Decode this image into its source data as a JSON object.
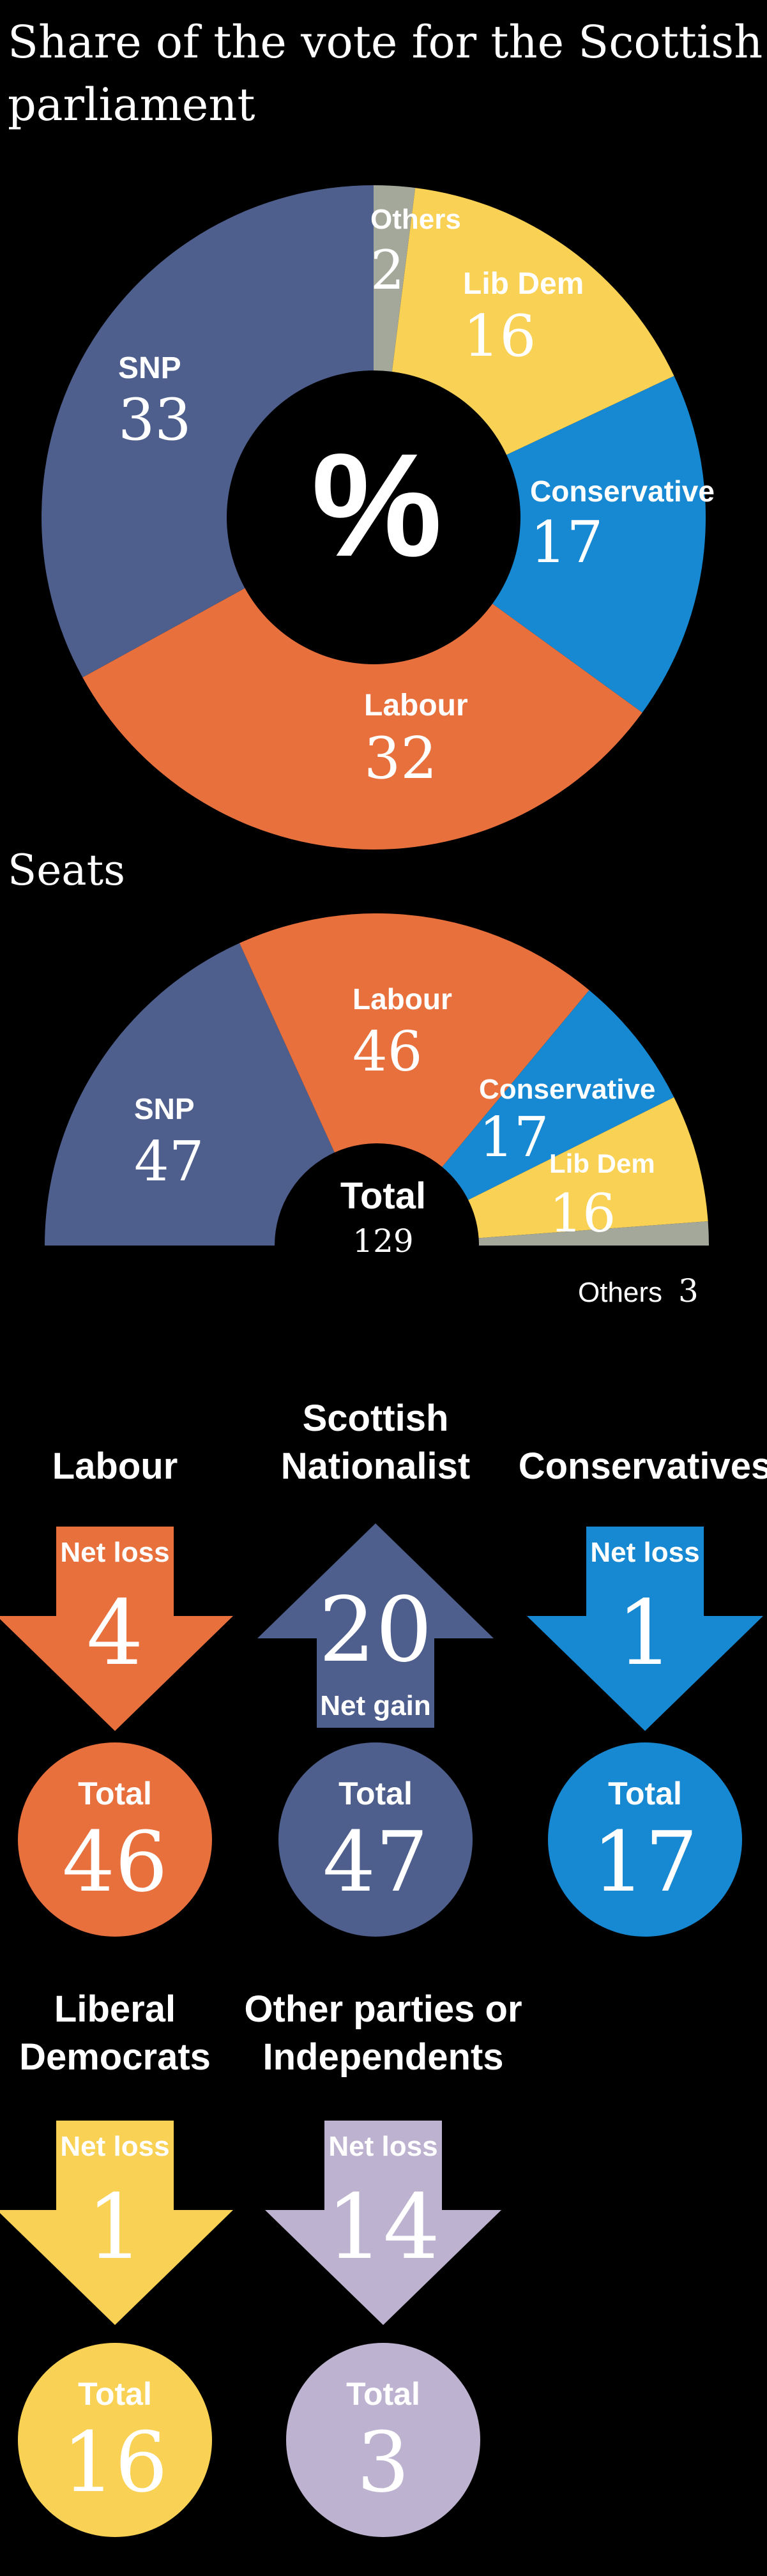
{
  "title": "Share of the vote for the Scottish parliament",
  "center_symbol": "%",
  "seats_title": "Seats",
  "seats_total_label": "Total",
  "seats_total_value": "129",
  "colors": {
    "snp": "#4f5f8d",
    "labour": "#e8703d",
    "conservative": "#1788d2",
    "libdem": "#f9d154",
    "others": "#a4a89a",
    "others_parties": "#bdb2cf",
    "background": "#000000",
    "text": "#ffffff"
  },
  "chart_data": [
    {
      "type": "pie",
      "title": "Share of the vote for the Scottish parliament",
      "unit": "%",
      "slices": [
        {
          "label": "Others",
          "value": 2,
          "color": "#a4a89a"
        },
        {
          "label": "Lib Dem",
          "value": 16,
          "color": "#f9d154"
        },
        {
          "label": "Conservative",
          "value": 17,
          "color": "#1788d2"
        },
        {
          "label": "Labour",
          "value": 32,
          "color": "#e8703d"
        },
        {
          "label": "SNP",
          "value": 33,
          "color": "#4f5f8d"
        }
      ]
    },
    {
      "type": "pie",
      "title": "Seats",
      "total": 129,
      "slices": [
        {
          "label": "SNP",
          "value": 47,
          "color": "#4f5f8d"
        },
        {
          "label": "Labour",
          "value": 46,
          "color": "#e8703d"
        },
        {
          "label": "Conservative",
          "value": 17,
          "color": "#1788d2"
        },
        {
          "label": "Lib Dem",
          "value": 16,
          "color": "#f9d154"
        },
        {
          "label": "Others",
          "value": 3,
          "color": "#a4a89a"
        }
      ]
    }
  ],
  "party_changes": [
    {
      "name_lines": [
        "Labour"
      ],
      "change_label": "Net loss",
      "change_value": "4",
      "direction": "down",
      "total_label": "Total",
      "total_value": "46",
      "color": "#e8703d"
    },
    {
      "name_lines": [
        "Scottish",
        "Nationalist"
      ],
      "change_label": "Net gain",
      "change_value": "20",
      "direction": "up",
      "total_label": "Total",
      "total_value": "47",
      "color": "#4f5f8d"
    },
    {
      "name_lines": [
        "Conservatives"
      ],
      "change_label": "Net loss",
      "change_value": "1",
      "direction": "down",
      "total_label": "Total",
      "total_value": "17",
      "color": "#1788d2"
    },
    {
      "name_lines": [
        "Liberal",
        "Democrats"
      ],
      "change_label": "Net loss",
      "change_value": "1",
      "direction": "down",
      "total_label": "Total",
      "total_value": "16",
      "color": "#f9d154"
    },
    {
      "name_lines": [
        "Other parties or",
        "Independents"
      ],
      "change_label": "Net loss",
      "change_value": "14",
      "direction": "down",
      "total_label": "Total",
      "total_value": "3",
      "color": "#bdb2cf"
    }
  ]
}
